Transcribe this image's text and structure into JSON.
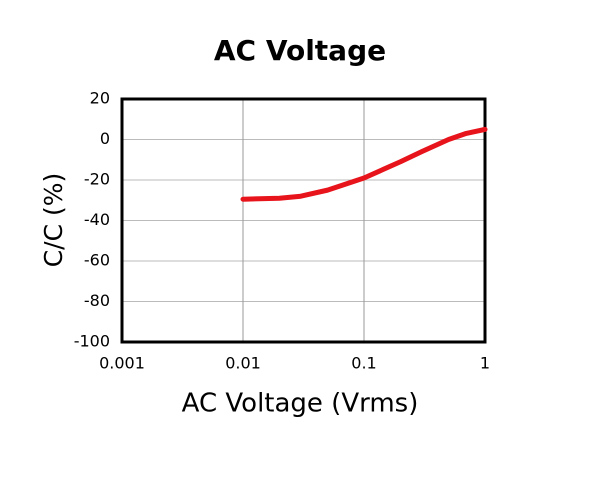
{
  "chart_data": {
    "type": "line",
    "title": "AC Voltage",
    "x_label": "AC Voltage (Vrms)",
    "y_label": "C/C (%)",
    "x": [
      0.01,
      0.02,
      0.03,
      0.05,
      0.1,
      0.2,
      0.3,
      0.5,
      0.7,
      1
    ],
    "series": [
      {
        "name": "C/C",
        "color": "#e8141c",
        "values": [
          -29.5,
          -29,
          -28,
          -25,
          -19,
          -11,
          -6,
          0,
          3,
          5
        ]
      }
    ],
    "xlim": [
      0.001,
      1
    ],
    "xticks": [
      0.001,
      0.01,
      0.1,
      1
    ],
    "x_scale": "log",
    "ylim": [
      -100,
      20
    ],
    "yticks": [
      -100,
      -80,
      -60,
      -40,
      -20,
      0,
      20
    ],
    "grid": true
  }
}
